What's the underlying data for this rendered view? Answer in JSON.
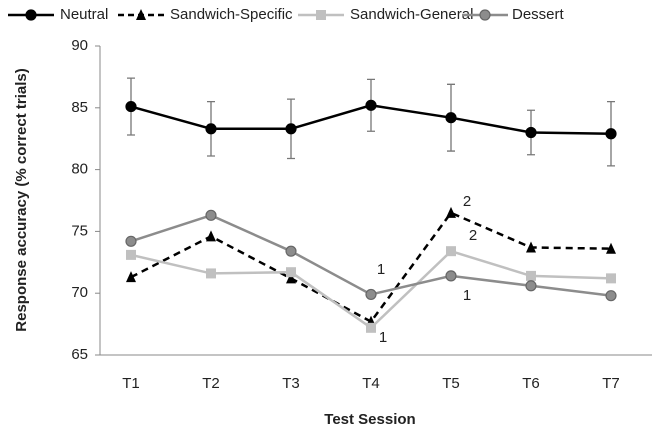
{
  "chart_data": {
    "type": "line",
    "xlabel": "Test Session",
    "ylabel": "Response accuracy  (% correct trials)",
    "categories": [
      "T1",
      "T2",
      "T3",
      "T4",
      "T5",
      "T6",
      "T7"
    ],
    "series": [
      {
        "name": "Neutral",
        "color": "#000000",
        "dash": false,
        "marker": "circle",
        "values": [
          85.1,
          83.3,
          83.3,
          85.2,
          84.2,
          83.0,
          82.9
        ],
        "errors": [
          2.3,
          2.2,
          2.4,
          2.1,
          2.7,
          1.8,
          2.6
        ]
      },
      {
        "name": "Sandwich-Specific",
        "color": "#000000",
        "dash": true,
        "marker": "triangle",
        "values": [
          71.3,
          74.6,
          71.2,
          67.7,
          76.5,
          73.7,
          73.6
        ]
      },
      {
        "name": "Sandwich-General",
        "color": "#c0c0c0",
        "dash": false,
        "marker": "square",
        "values": [
          73.1,
          71.6,
          71.7,
          67.2,
          73.4,
          71.4,
          71.2
        ]
      },
      {
        "name": "Dessert",
        "color": "#8c8c8c",
        "dash": false,
        "marker": "circle",
        "values": [
          74.2,
          76.3,
          73.4,
          69.9,
          71.4,
          70.6,
          69.8
        ]
      }
    ],
    "annotations": [
      "1",
      "1",
      "2",
      "2",
      "1"
    ],
    "ylim": [
      65,
      90
    ],
    "yticks": [
      65,
      70,
      75,
      80,
      85,
      90
    ],
    "legend": "top",
    "grid": false
  }
}
